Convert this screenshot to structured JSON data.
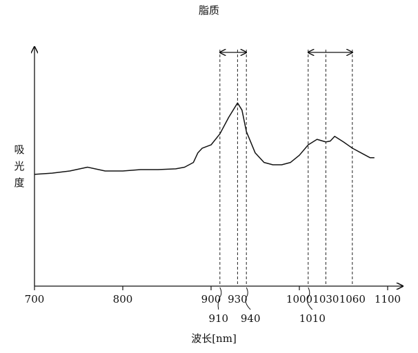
{
  "chart_data": {
    "type": "line",
    "title": "脂质",
    "x_label": "波长[nm]",
    "y_label": "吸光度",
    "x": [
      700,
      720,
      740,
      760,
      780,
      800,
      820,
      840,
      860,
      870,
      880,
      885,
      890,
      900,
      910,
      920,
      930,
      935,
      940,
      950,
      960,
      970,
      980,
      990,
      1000,
      1010,
      1020,
      1030,
      1035,
      1040,
      1050,
      1060,
      1070,
      1080,
      1085
    ],
    "values": [
      0.47,
      0.475,
      0.484,
      0.5,
      0.484,
      0.484,
      0.49,
      0.49,
      0.493,
      0.5,
      0.52,
      0.56,
      0.58,
      0.594,
      0.64,
      0.71,
      0.77,
      0.74,
      0.65,
      0.56,
      0.52,
      0.51,
      0.51,
      0.52,
      0.55,
      0.594,
      0.617,
      0.606,
      0.61,
      0.63,
      0.606,
      0.58,
      0.56,
      0.54,
      0.54
    ],
    "color": "#111111",
    "xlim": [
      700,
      1100
    ],
    "xticks": [
      700,
      800,
      900,
      1000,
      1100
    ],
    "ylim": [
      0,
      1
    ],
    "markers": [
      910,
      930,
      940,
      1010,
      1030,
      1060
    ]
  }
}
